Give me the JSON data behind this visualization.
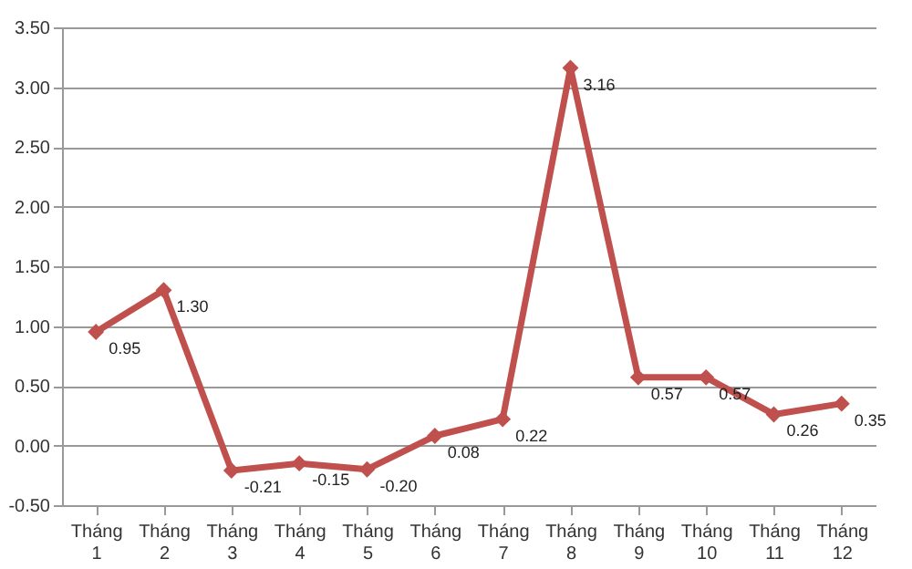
{
  "chart_data": {
    "type": "line",
    "categories": [
      "Tháng 1",
      "Tháng 2",
      "Tháng 3",
      "Tháng 4",
      "Tháng 5",
      "Tháng 6",
      "Tháng 7",
      "Tháng 8",
      "Tháng 9",
      "Tháng 10",
      "Tháng 11",
      "Tháng 12"
    ],
    "series": [
      {
        "color": "#c0504d",
        "values": [
          0.95,
          1.3,
          -0.21,
          -0.15,
          -0.2,
          0.08,
          0.22,
          3.16,
          0.57,
          0.57,
          0.26,
          0.35
        ]
      }
    ],
    "ylim": [
      -0.5,
      3.5
    ],
    "yticks": [
      {
        "value": -0.5,
        "label": "-0.50"
      },
      {
        "value": 0,
        "label": "0.00"
      },
      {
        "value": 0.5,
        "label": "0.50"
      },
      {
        "value": 1,
        "label": "1.00"
      },
      {
        "value": 1.5,
        "label": "1.50"
      },
      {
        "value": 2,
        "label": "2.00"
      },
      {
        "value": 2.5,
        "label": "2.50"
      },
      {
        "value": 3,
        "label": "3.00"
      },
      {
        "value": 3.5,
        "label": "3.50"
      }
    ],
    "value_labels": [
      "0.95",
      "1.30",
      "-0.21",
      "-0.15",
      "-0.20",
      "0.08",
      "0.22",
      "3.16",
      "0.57",
      "0.57",
      "0.26",
      "0.35"
    ],
    "grid": "y",
    "marker": "diamond",
    "line_style": "solid",
    "legend": false
  }
}
